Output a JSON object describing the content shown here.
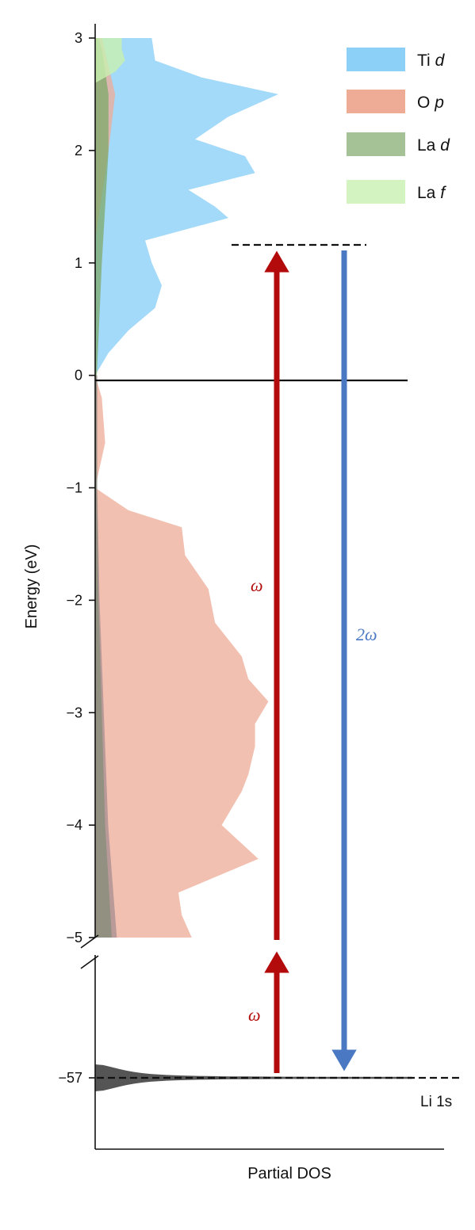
{
  "chart_data": {
    "type": "area",
    "ylabel": "Energy (eV)",
    "xlabel": "Partial DOS",
    "ylim": [
      -5,
      3
    ],
    "y_ticks": [
      "3",
      "2",
      "1",
      "0",
      "−1",
      "−2",
      "−3",
      "−4",
      "−5"
    ],
    "core_tick": "−57",
    "core_label": "Li 1s",
    "legend_placement": "top-right",
    "legend": [
      {
        "label": "Ti",
        "orbital": "d",
        "color": "#8ccff7"
      },
      {
        "label": "O",
        "orbital": "p",
        "color": "#eeab95"
      },
      {
        "label": "La",
        "orbital": "d",
        "color": "#7ea86a"
      },
      {
        "label": "La",
        "orbital": "f",
        "color": "#c8f0b0"
      }
    ],
    "series": [
      {
        "name": "Ti d",
        "points": [
          [
            0.0,
            0.0
          ],
          [
            0.2,
            0.04
          ],
          [
            0.4,
            0.1
          ],
          [
            0.6,
            0.18
          ],
          [
            0.8,
            0.2
          ],
          [
            1.0,
            0.17
          ],
          [
            1.2,
            0.15
          ],
          [
            1.4,
            0.4
          ],
          [
            1.5,
            0.36
          ],
          [
            1.65,
            0.28
          ],
          [
            1.8,
            0.48
          ],
          [
            1.95,
            0.45
          ],
          [
            2.1,
            0.3
          ],
          [
            2.3,
            0.4
          ],
          [
            2.5,
            0.55
          ],
          [
            2.65,
            0.32
          ],
          [
            2.8,
            0.18
          ],
          [
            3.0,
            0.17
          ]
        ]
      },
      {
        "name": "O p",
        "points": [
          [
            -5.0,
            0.29
          ],
          [
            -4.8,
            0.26
          ],
          [
            -4.6,
            0.25
          ],
          [
            -4.3,
            0.49
          ],
          [
            -4.0,
            0.38
          ],
          [
            -3.7,
            0.44
          ],
          [
            -3.55,
            0.46
          ],
          [
            -3.3,
            0.48
          ],
          [
            -3.1,
            0.48
          ],
          [
            -2.9,
            0.52
          ],
          [
            -2.7,
            0.46
          ],
          [
            -2.5,
            0.44
          ],
          [
            -2.2,
            0.36
          ],
          [
            -1.9,
            0.34
          ],
          [
            -1.6,
            0.27
          ],
          [
            -1.35,
            0.26
          ],
          [
            -1.2,
            0.1
          ],
          [
            -1.0,
            0.0
          ],
          [
            -0.6,
            0.03
          ],
          [
            -0.2,
            0.02
          ],
          [
            0.0,
            0.0
          ],
          [
            1.2,
            0.0
          ],
          [
            2.0,
            0.04
          ],
          [
            2.5,
            0.06
          ],
          [
            3.0,
            0.02
          ]
        ]
      },
      {
        "name": "La d",
        "points": [
          [
            -5.0,
            0.05
          ],
          [
            -4.5,
            0.04
          ],
          [
            -4.0,
            0.03
          ],
          [
            -3.0,
            0.02
          ],
          [
            -2.0,
            0.01
          ],
          [
            -1.0,
            0.005
          ],
          [
            0.0,
            0.005
          ],
          [
            1.0,
            0.02
          ],
          [
            1.5,
            0.03
          ],
          [
            2.0,
            0.04
          ],
          [
            2.5,
            0.04
          ],
          [
            2.9,
            0.02
          ],
          [
            3.0,
            0.01
          ]
        ]
      },
      {
        "name": "La f",
        "points": [
          [
            2.6,
            0.0
          ],
          [
            2.7,
            0.06
          ],
          [
            2.8,
            0.09
          ],
          [
            2.9,
            0.08
          ],
          [
            3.0,
            0.08
          ]
        ]
      }
    ],
    "core_level": {
      "label": "Li 1s",
      "energy": -57
    },
    "transitions": [
      {
        "label": "ω",
        "from": -57,
        "to": -5,
        "color": "#b30b0b"
      },
      {
        "label": "ω",
        "from": -5,
        "to": 1.15,
        "color": "#b30b0b"
      },
      {
        "label": "2ω",
        "from": 1.15,
        "to": -57,
        "color": "#4a78c2"
      }
    ]
  }
}
